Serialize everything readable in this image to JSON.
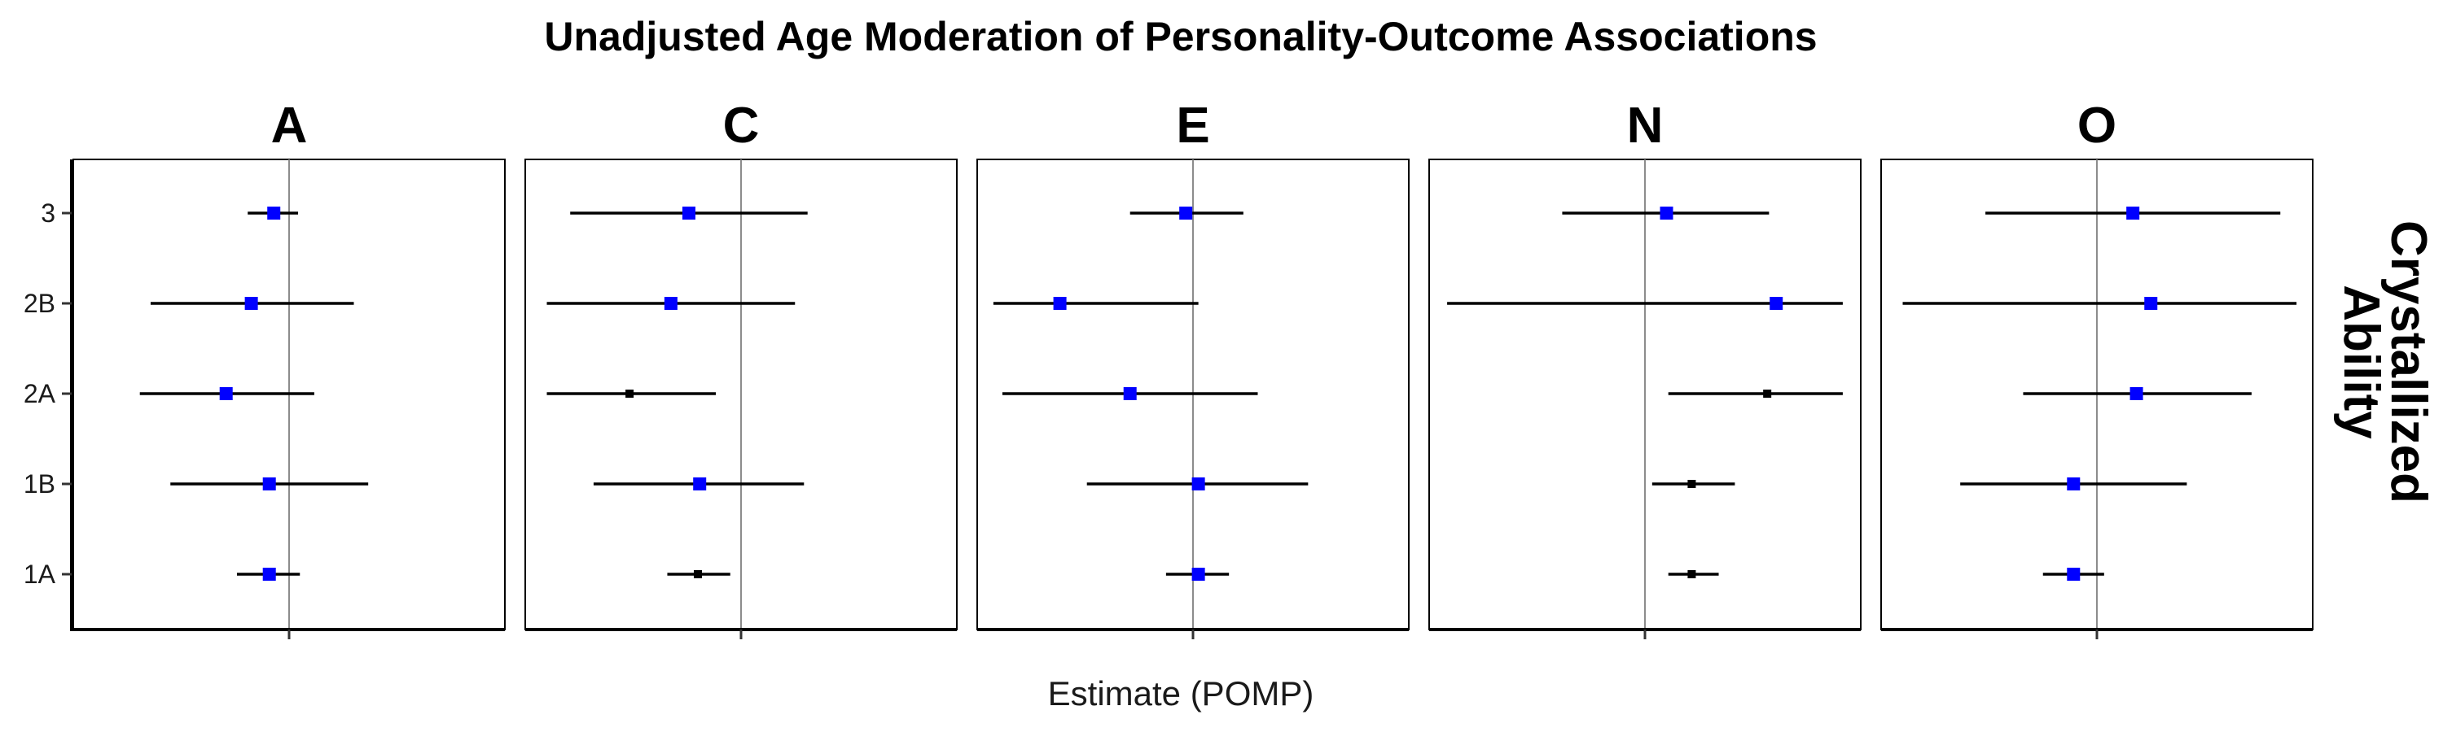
{
  "chart_data": {
    "type": "forest-plot",
    "title": "Unadjusted Age Moderation of Personality-Outcome Associations",
    "xlabel": "Estimate (POMP)",
    "ylabel": "",
    "row_strip_label": "Crystallized\nAbility",
    "categories": [
      "3",
      "2B",
      "2A",
      "1B",
      "1A"
    ],
    "xlim": [
      -0.12,
      0.12
    ],
    "reference_line": 0,
    "point_colors": {
      "significant": "#0000ff",
      "nonsignificant": "#000000"
    },
    "facets": [
      {
        "name": "A",
        "points": [
          {
            "study": "3",
            "estimate": -0.0085,
            "lower": -0.023,
            "upper": 0.005,
            "significant": true
          },
          {
            "study": "2B",
            "estimate": -0.021,
            "lower": -0.077,
            "upper": 0.036,
            "significant": true
          },
          {
            "study": "2A",
            "estimate": -0.035,
            "lower": -0.083,
            "upper": 0.014,
            "significant": true
          },
          {
            "study": "1B",
            "estimate": -0.011,
            "lower": -0.066,
            "upper": 0.044,
            "significant": true
          },
          {
            "study": "1A",
            "estimate": -0.011,
            "lower": -0.029,
            "upper": 0.006,
            "significant": true
          }
        ]
      },
      {
        "name": "C",
        "points": [
          {
            "study": "3",
            "estimate": -0.029,
            "lower": -0.095,
            "upper": 0.037,
            "significant": true
          },
          {
            "study": "2B",
            "estimate": -0.039,
            "lower": -0.108,
            "upper": 0.03,
            "significant": true
          },
          {
            "study": "2A",
            "estimate": -0.062,
            "lower": -0.108,
            "upper": -0.014,
            "significant": false
          },
          {
            "study": "1B",
            "estimate": -0.023,
            "lower": -0.082,
            "upper": 0.035,
            "significant": true
          },
          {
            "study": "1A",
            "estimate": -0.024,
            "lower": -0.041,
            "upper": -0.006,
            "significant": false
          }
        ]
      },
      {
        "name": "E",
        "points": [
          {
            "study": "3",
            "estimate": -0.004,
            "lower": -0.035,
            "upper": 0.028,
            "significant": true
          },
          {
            "study": "2B",
            "estimate": -0.074,
            "lower": -0.111,
            "upper": 0.003,
            "significant": true
          },
          {
            "study": "2A",
            "estimate": -0.035,
            "lower": -0.106,
            "upper": 0.036,
            "significant": true
          },
          {
            "study": "1B",
            "estimate": 0.003,
            "lower": -0.059,
            "upper": 0.064,
            "significant": true
          },
          {
            "study": "1A",
            "estimate": 0.003,
            "lower": -0.015,
            "upper": 0.02,
            "significant": true
          }
        ]
      },
      {
        "name": "N",
        "points": [
          {
            "study": "3",
            "estimate": 0.012,
            "lower": -0.046,
            "upper": 0.069,
            "significant": true
          },
          {
            "study": "2B",
            "estimate": 0.073,
            "lower": -0.11,
            "upper": 0.11,
            "significant": true
          },
          {
            "study": "2A",
            "estimate": 0.068,
            "lower": 0.013,
            "upper": 0.11,
            "significant": false
          },
          {
            "study": "1B",
            "estimate": 0.026,
            "lower": 0.004,
            "upper": 0.05,
            "significant": false
          },
          {
            "study": "1A",
            "estimate": 0.026,
            "lower": 0.013,
            "upper": 0.041,
            "significant": false
          }
        ]
      },
      {
        "name": "O",
        "points": [
          {
            "study": "3",
            "estimate": 0.02,
            "lower": -0.062,
            "upper": 0.102,
            "significant": true
          },
          {
            "study": "2B",
            "estimate": 0.03,
            "lower": -0.108,
            "upper": 0.111,
            "significant": true
          },
          {
            "study": "2A",
            "estimate": 0.022,
            "lower": -0.041,
            "upper": 0.086,
            "significant": true
          },
          {
            "study": "1B",
            "estimate": -0.013,
            "lower": -0.076,
            "upper": 0.05,
            "significant": true
          },
          {
            "study": "1A",
            "estimate": -0.013,
            "lower": -0.03,
            "upper": 0.004,
            "significant": true
          }
        ]
      }
    ]
  }
}
